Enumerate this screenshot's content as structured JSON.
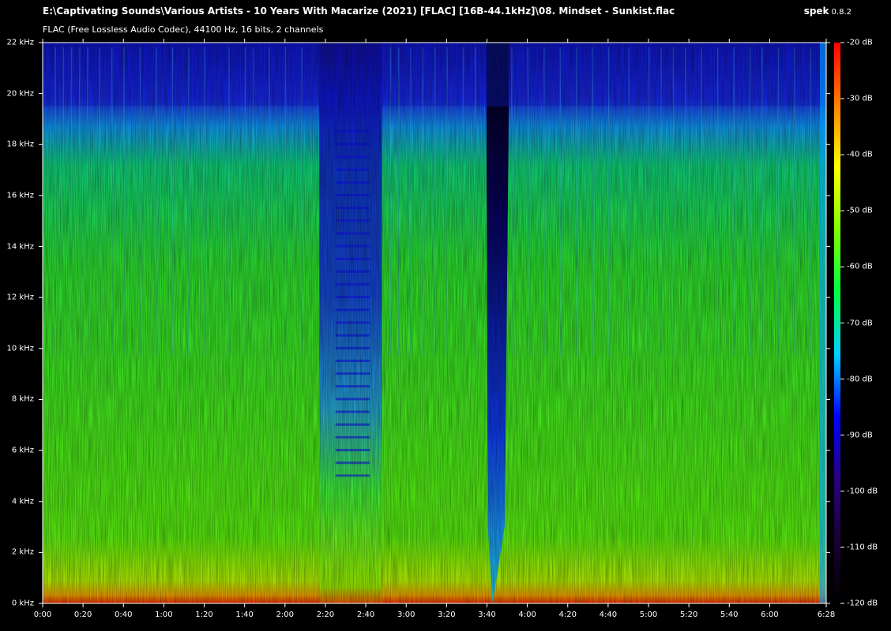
{
  "window": {
    "title": "E:\\Captivating Sounds\\Various Artists - 10 Years With Macarize (2021) [FLAC] [16B-44.1kHz]\\08. Mindset - Sunkist.flac",
    "subtitle": "FLAC (Free Lossless Audio Codec), 44100 Hz, 16 bits, 2 channels",
    "app_name": "spek",
    "app_version": "0.8.2"
  },
  "chart_data": {
    "type": "heatmap",
    "title": "E:\\Captivating Sounds\\Various Artists - 10 Years With Macarize (2021) [FLAC] [16B-44.1kHz]\\08. Mindset - Sunkist.flac",
    "subtitle": "FLAC (Free Lossless Audio Codec), 44100 Hz, 16 bits, 2 channels",
    "x_unit": "time (m:ss)",
    "y_unit": "kHz",
    "x_range_seconds": [
      0,
      388
    ],
    "y_range_khz": [
      0,
      22
    ],
    "z_range_db": [
      -120,
      -20
    ],
    "x_ticks": [
      "0:00",
      "0:20",
      "0:40",
      "1:00",
      "1:20",
      "1:40",
      "2:00",
      "2:20",
      "2:40",
      "3:00",
      "3:20",
      "3:40",
      "4:00",
      "4:20",
      "4:40",
      "5:00",
      "5:20",
      "5:40",
      "6:00",
      "6:28"
    ],
    "x_tick_seconds": [
      0,
      20,
      40,
      60,
      80,
      100,
      120,
      140,
      160,
      180,
      200,
      220,
      240,
      260,
      280,
      300,
      320,
      340,
      360,
      388
    ],
    "y_ticks": [
      "0 kHz",
      "2 kHz",
      "4 kHz",
      "6 kHz",
      "8 kHz",
      "10 kHz",
      "12 kHz",
      "14 kHz",
      "16 kHz",
      "18 kHz",
      "20 kHz",
      "22 kHz"
    ],
    "y_tick_khz": [
      0,
      2,
      4,
      6,
      8,
      10,
      12,
      14,
      16,
      18,
      20,
      22
    ],
    "db_ticks": [
      "-20 dB",
      "-30 dB",
      "-40 dB",
      "-50 dB",
      "-60 dB",
      "-70 dB",
      "-80 dB",
      "-90 dB",
      "-100 dB",
      "-110 dB",
      "-120 dB"
    ],
    "db_tick_values": [
      -20,
      -30,
      -40,
      -50,
      -60,
      -70,
      -80,
      -90,
      -100,
      -110,
      -120
    ],
    "colormap": [
      "#000000",
      "#1a0033",
      "#2a0080",
      "#0000ff",
      "#00d0ff",
      "#00ff40",
      "#80ff00",
      "#ffff00",
      "#ff8000",
      "#ff0000"
    ],
    "features": {
      "breakdown_seconds": [
        137,
        168
      ],
      "silence_gap_seconds": [
        222,
        228
      ],
      "high_cutoff_khz": 19.5,
      "fade_out_seconds": 388
    }
  }
}
